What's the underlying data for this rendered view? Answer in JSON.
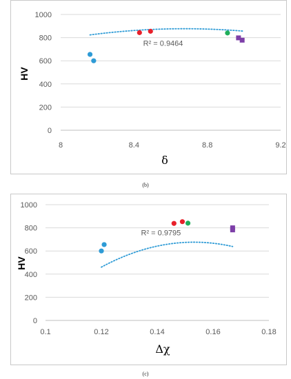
{
  "captions": {
    "b": "(b)",
    "c": "(c)"
  },
  "colors": {
    "blue": "#2e9bd6",
    "red": "#e8202a",
    "green": "#1fae5a",
    "purple": "#7d3fa8",
    "trend": "#2e9bd6",
    "grid": "#d9d9d9",
    "axis": "#bfbfbf"
  },
  "chart_data": [
    {
      "id": "b",
      "type": "scatter",
      "title": "",
      "xlabel": "δ",
      "ylabel": "HV",
      "xlim": [
        8,
        9.2
      ],
      "ylim": [
        0,
        1000
      ],
      "x_ticks": [
        8,
        8.4,
        8.8,
        9.2
      ],
      "x_tick_labels": [
        "8",
        "8.4",
        "8.8",
        "9.2"
      ],
      "y_ticks": [
        0,
        200,
        400,
        600,
        800,
        1000
      ],
      "y_tick_labels": [
        "0",
        "200",
        "400",
        "600",
        "800",
        "1000"
      ],
      "grid": "horizontal",
      "r2_text": "R² = 0.9464",
      "r2_at": [
        8.45,
        730
      ],
      "trendline": {
        "kind": "polynomial-2",
        "coef": [
          -14230,
          3482.5,
          -200.7
        ],
        "x_range": [
          8.16,
          9.0
        ]
      },
      "points": [
        {
          "x": 8.16,
          "y": 655,
          "color": "blue",
          "marker": "circle"
        },
        {
          "x": 8.18,
          "y": 600,
          "color": "blue",
          "marker": "circle"
        },
        {
          "x": 8.43,
          "y": 843,
          "color": "red",
          "marker": "circle"
        },
        {
          "x": 8.49,
          "y": 855,
          "color": "red",
          "marker": "circle"
        },
        {
          "x": 8.91,
          "y": 840,
          "color": "green",
          "marker": "circle"
        },
        {
          "x": 8.97,
          "y": 798,
          "color": "purple",
          "marker": "square"
        },
        {
          "x": 8.99,
          "y": 778,
          "color": "purple",
          "marker": "square"
        }
      ]
    },
    {
      "id": "c",
      "type": "scatter",
      "title": "",
      "xlabel": "Δχ",
      "ylabel": "HV",
      "xlim": [
        0.1,
        0.18
      ],
      "ylim": [
        0,
        1000
      ],
      "x_ticks": [
        0.1,
        0.12,
        0.14,
        0.16,
        0.18
      ],
      "x_tick_labels": [
        "0.1",
        "0.12",
        "0.14",
        "0.16",
        "0.18"
      ],
      "y_ticks": [
        0,
        200,
        400,
        600,
        800,
        1000
      ],
      "y_tick_labels": [
        "0",
        "200",
        "400",
        "600",
        "800",
        "1000"
      ],
      "grid": "horizontal",
      "r2_text": "R² = 0.9795",
      "r2_at": [
        0.1342,
        735
      ],
      "trendline": {
        "kind": "polynomial-2",
        "coef": [
          -3922,
          60040,
          -196000
        ],
        "x_range": [
          0.12,
          0.167
        ]
      },
      "points": [
        {
          "x": 0.12,
          "y": 600,
          "color": "blue",
          "marker": "circle"
        },
        {
          "x": 0.121,
          "y": 655,
          "color": "blue",
          "marker": "circle"
        },
        {
          "x": 0.146,
          "y": 838,
          "color": "red",
          "marker": "circle"
        },
        {
          "x": 0.149,
          "y": 853,
          "color": "red",
          "marker": "circle"
        },
        {
          "x": 0.151,
          "y": 840,
          "color": "green",
          "marker": "circle"
        },
        {
          "x": 0.167,
          "y": 800,
          "color": "purple",
          "marker": "square"
        },
        {
          "x": 0.167,
          "y": 782,
          "color": "purple",
          "marker": "square"
        }
      ]
    }
  ]
}
